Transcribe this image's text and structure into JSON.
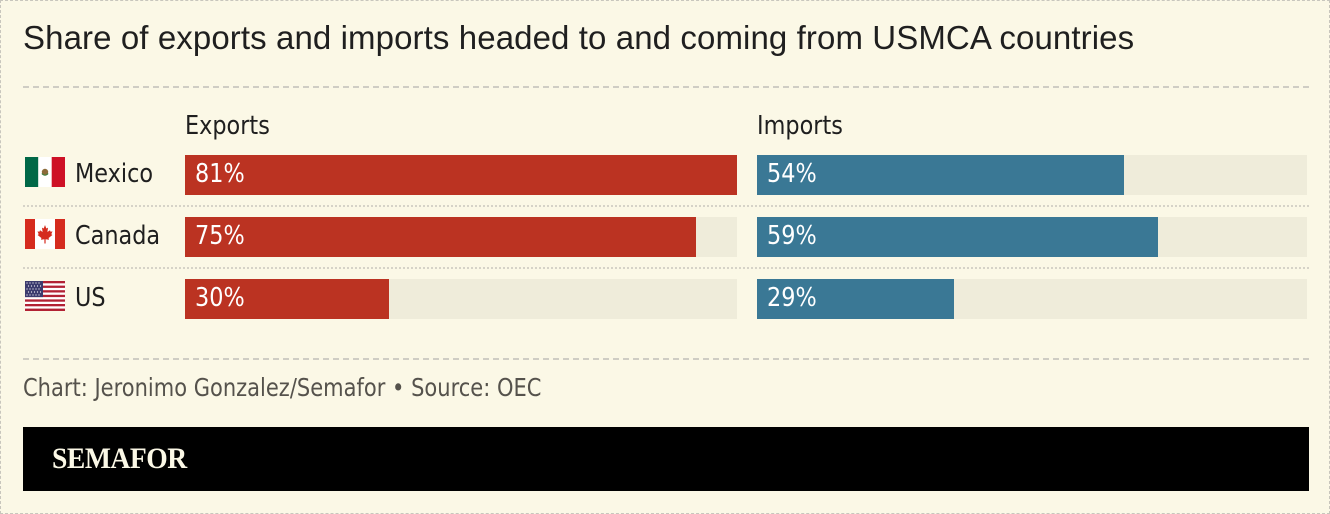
{
  "title": "Share of exports and imports headed to and coming from USMCA countries",
  "columns": {
    "exports_label": "Exports",
    "imports_label": "Imports"
  },
  "colors": {
    "exports": "#bb3322",
    "imports": "#3a7895",
    "track": "#efecda",
    "background": "#fbf8e6"
  },
  "scale_max": 81,
  "rows": [
    {
      "country": "Mexico",
      "flag_icon": "mexico-flag-icon",
      "exports": 81,
      "exports_label": "81%",
      "imports": 54,
      "imports_label": "54%"
    },
    {
      "country": "Canada",
      "flag_icon": "canada-flag-icon",
      "exports": 75,
      "exports_label": "75%",
      "imports": 59,
      "imports_label": "59%"
    },
    {
      "country": "US",
      "flag_icon": "us-flag-icon",
      "exports": 30,
      "exports_label": "30%",
      "imports": 29,
      "imports_label": "29%"
    }
  ],
  "footer": {
    "source": "Chart: Jeronimo Gonzalez/Semafor • Source: OEC",
    "brand": "SEMAFOR"
  },
  "chart_data": {
    "type": "bar",
    "orientation": "horizontal",
    "title": "Share of exports and imports headed to and coming from USMCA countries",
    "categories": [
      "Mexico",
      "Canada",
      "US"
    ],
    "series": [
      {
        "name": "Exports",
        "values": [
          81,
          75,
          30
        ],
        "color": "#bb3322"
      },
      {
        "name": "Imports",
        "values": [
          54,
          59,
          29
        ],
        "color": "#3a7895"
      }
    ],
    "unit": "%",
    "xlabel": "",
    "ylabel": "",
    "xlim": [
      0,
      81
    ],
    "grid": false,
    "legend": "column headers (Exports, Imports)",
    "source": "Chart: Jeronimo Gonzalez/Semafor • Source: OEC"
  }
}
